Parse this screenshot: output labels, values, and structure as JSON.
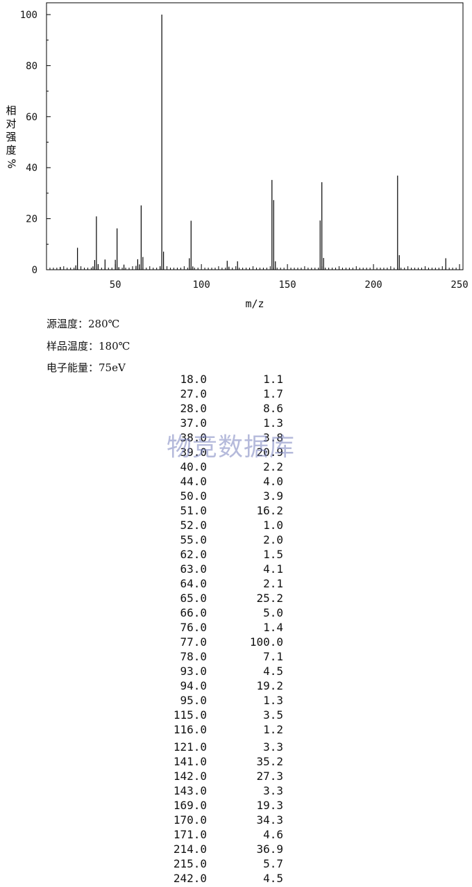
{
  "chart_data": {
    "type": "bar",
    "xlabel": "m/z",
    "ylabel": "相对强度",
    "ylabel_unit": "%",
    "xlim": [
      10,
      252
    ],
    "ylim": [
      0,
      100
    ],
    "x_ticks": [
      50,
      100,
      150,
      200,
      250
    ],
    "y_ticks": [
      0,
      20,
      40,
      60,
      80,
      100
    ],
    "peaks": [
      {
        "mz": 18.0,
        "intensity": 1.1
      },
      {
        "mz": 27.0,
        "intensity": 1.7
      },
      {
        "mz": 28.0,
        "intensity": 8.6
      },
      {
        "mz": 37.0,
        "intensity": 1.3
      },
      {
        "mz": 38.0,
        "intensity": 3.8
      },
      {
        "mz": 39.0,
        "intensity": 20.9
      },
      {
        "mz": 40.0,
        "intensity": 2.2
      },
      {
        "mz": 44.0,
        "intensity": 4.0
      },
      {
        "mz": 50.0,
        "intensity": 3.9
      },
      {
        "mz": 51.0,
        "intensity": 16.2
      },
      {
        "mz": 52.0,
        "intensity": 1.0
      },
      {
        "mz": 55.0,
        "intensity": 2.0
      },
      {
        "mz": 62.0,
        "intensity": 1.5
      },
      {
        "mz": 63.0,
        "intensity": 4.1
      },
      {
        "mz": 64.0,
        "intensity": 2.1
      },
      {
        "mz": 65.0,
        "intensity": 25.2
      },
      {
        "mz": 66.0,
        "intensity": 5.0
      },
      {
        "mz": 76.0,
        "intensity": 1.4
      },
      {
        "mz": 77.0,
        "intensity": 100.0
      },
      {
        "mz": 78.0,
        "intensity": 7.1
      },
      {
        "mz": 93.0,
        "intensity": 4.5
      },
      {
        "mz": 94.0,
        "intensity": 19.2
      },
      {
        "mz": 95.0,
        "intensity": 1.3
      },
      {
        "mz": 115.0,
        "intensity": 3.5
      },
      {
        "mz": 116.0,
        "intensity": 1.2
      },
      {
        "mz": 121.0,
        "intensity": 3.3
      },
      {
        "mz": 141.0,
        "intensity": 35.2
      },
      {
        "mz": 142.0,
        "intensity": 27.3
      },
      {
        "mz": 143.0,
        "intensity": 3.3
      },
      {
        "mz": 169.0,
        "intensity": 19.3
      },
      {
        "mz": 170.0,
        "intensity": 34.3
      },
      {
        "mz": 171.0,
        "intensity": 4.6
      },
      {
        "mz": 214.0,
        "intensity": 36.9
      },
      {
        "mz": 215.0,
        "intensity": 5.7
      },
      {
        "mz": 242.0,
        "intensity": 4.5
      }
    ]
  },
  "conditions": [
    {
      "label": "源温度：",
      "value": "280℃"
    },
    {
      "label": "样品温度：",
      "value": "180℃"
    },
    {
      "label": "电子能量：",
      "value": "75eV"
    }
  ],
  "peak_table": [
    [
      "18.0",
      "1.1"
    ],
    [
      "27.0",
      "1.7"
    ],
    [
      "28.0",
      "8.6"
    ],
    [
      "37.0",
      "1.3"
    ],
    [
      "38.0",
      "3.8"
    ],
    [
      "39.0",
      "20.9"
    ],
    [
      "40.0",
      "2.2"
    ],
    [
      "44.0",
      "4.0"
    ],
    [
      "50.0",
      "3.9"
    ],
    [
      "51.0",
      "16.2"
    ],
    [
      "52.0",
      "1.0"
    ],
    [
      "55.0",
      "2.0"
    ],
    [
      "62.0",
      "1.5"
    ],
    [
      "63.0",
      "4.1"
    ],
    [
      "64.0",
      "2.1"
    ],
    [
      "65.0",
      "25.2"
    ],
    [
      "66.0",
      "5.0"
    ],
    [
      "76.0",
      "1.4"
    ],
    [
      "77.0",
      "100.0"
    ],
    [
      "78.0",
      "7.1"
    ],
    [
      "93.0",
      "4.5"
    ],
    [
      "94.0",
      "19.2"
    ],
    [
      "95.0",
      "1.3"
    ],
    [
      "115.0",
      "3.5"
    ],
    [
      "116.0",
      "1.2"
    ],
    [
      "121.0",
      "3.3"
    ],
    [
      "141.0",
      "35.2"
    ],
    [
      "142.0",
      "27.3"
    ],
    [
      "143.0",
      "3.3"
    ],
    [
      "169.0",
      "19.3"
    ],
    [
      "170.0",
      "34.3"
    ],
    [
      "171.0",
      "4.6"
    ],
    [
      "214.0",
      "36.9"
    ],
    [
      "215.0",
      "5.7"
    ],
    [
      "242.0",
      "4.5"
    ]
  ],
  "watermark": "物竞数据库"
}
